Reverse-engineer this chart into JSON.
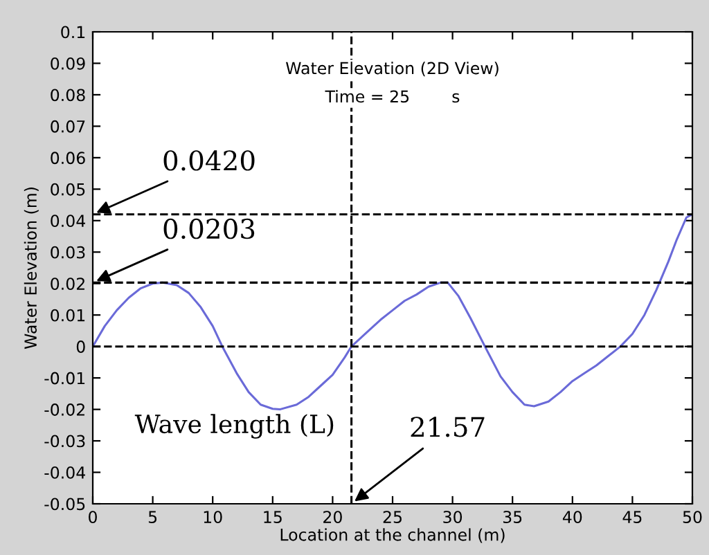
{
  "chart_data": {
    "type": "line",
    "title": "Water Elevation (2D View)",
    "subtitle": "Time = 25        s",
    "xlabel": "Location at the channel (m)",
    "ylabel": "Water Elevation (m)",
    "x": [
      0,
      1,
      2,
      3,
      4,
      5,
      5.8,
      7,
      8,
      9,
      10,
      10.8,
      12,
      13,
      14,
      15,
      15.6,
      17,
      18,
      19,
      20,
      21,
      21.57,
      23,
      24,
      25,
      26,
      27,
      28,
      29,
      29.6,
      30.5,
      31.5,
      32.7,
      34,
      35,
      36,
      36.8,
      38,
      39,
      40,
      41,
      42,
      43,
      44,
      45,
      46,
      47,
      48,
      48.7,
      49.5,
      50
    ],
    "series": [
      {
        "color": "#6a6ad8",
        "values": [
          0,
          0.0065,
          0.0115,
          0.0155,
          0.0185,
          0.02,
          0.0203,
          0.0195,
          0.017,
          0.0125,
          0.0065,
          0,
          -0.0085,
          -0.0145,
          -0.0185,
          -0.0198,
          -0.02,
          -0.0185,
          -0.016,
          -0.0125,
          -0.009,
          -0.0035,
          0,
          0.005,
          0.0085,
          0.0115,
          0.0145,
          0.0165,
          0.019,
          0.0203,
          0.0203,
          0.016,
          0.009,
          0,
          -0.0095,
          -0.0145,
          -0.0185,
          -0.019,
          -0.0175,
          -0.0145,
          -0.011,
          -0.0085,
          -0.006,
          -0.003,
          0,
          0.004,
          0.01,
          0.018,
          0.027,
          0.034,
          0.041,
          0.042
        ]
      }
    ],
    "xlim": [
      0,
      50
    ],
    "ylim": [
      -0.05,
      0.1
    ],
    "xticks": [
      0,
      5,
      10,
      15,
      20,
      25,
      30,
      35,
      40,
      45,
      50
    ],
    "yticks": [
      -0.05,
      -0.04,
      -0.03,
      -0.02,
      -0.01,
      0,
      0.01,
      0.02,
      0.03,
      0.04,
      0.05,
      0.06,
      0.07,
      0.08,
      0.09,
      0.1
    ],
    "ref_lines": [
      {
        "axis": "y",
        "value": 0.042,
        "label": "0.0420",
        "color": "#000000",
        "line_style": "dashed"
      },
      {
        "axis": "y",
        "value": 0.0203,
        "label": "0.0203",
        "color": "#000000",
        "line_style": "dashed"
      },
      {
        "axis": "y",
        "value": 0,
        "color": "#000000",
        "line_style": "dashed"
      },
      {
        "axis": "x",
        "value": 21.57,
        "label": "21.57",
        "color": "#000000",
        "line_style": "dashed"
      }
    ],
    "annotations": [
      "Wave length (L)"
    ],
    "grid": false,
    "legend": false
  }
}
